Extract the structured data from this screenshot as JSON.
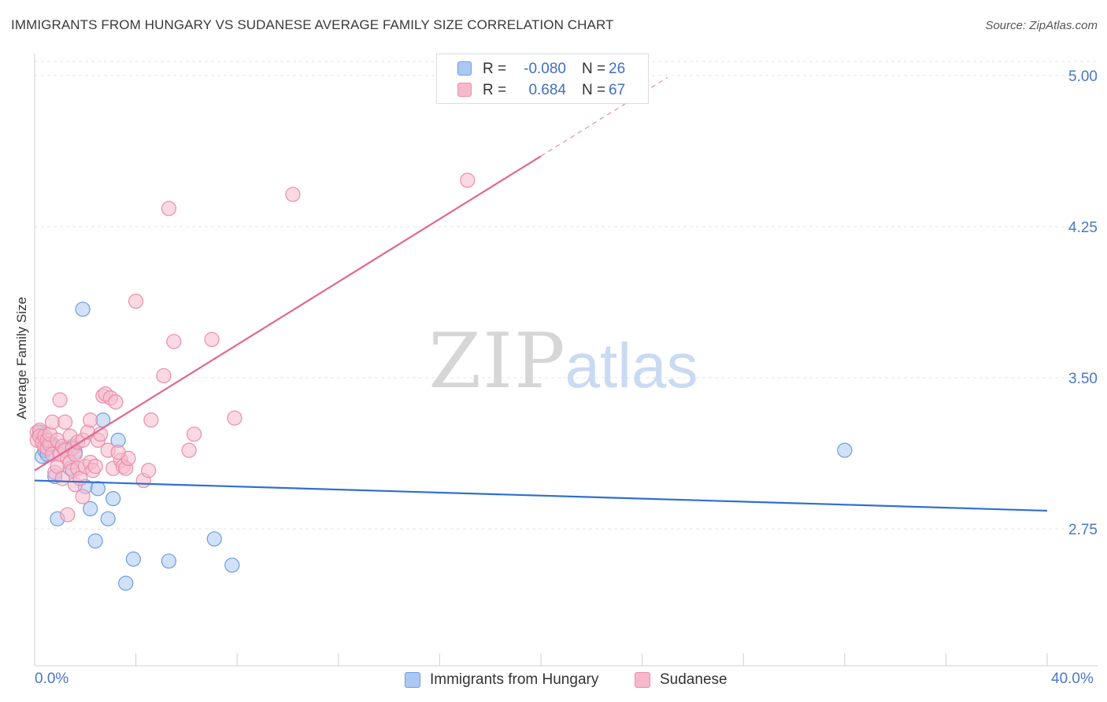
{
  "title": "IMMIGRANTS FROM HUNGARY VS SUDANESE AVERAGE FAMILY SIZE CORRELATION CHART",
  "source": "Source: ZipAtlas.com",
  "watermark": {
    "part1": "ZIP",
    "part2": "atlas"
  },
  "legend": {
    "rows": [
      {
        "r_label": "R =",
        "r_value": "-0.080",
        "n_label": "N =",
        "n_value": "26"
      },
      {
        "r_label": "R =",
        "r_value": "0.684",
        "n_label": "N =",
        "n_value": "67"
      }
    ]
  },
  "bottom_legend": {
    "hungary": "Immigrants from Hungary",
    "sudanese": "Sudanese"
  },
  "x_axis_labels": {
    "min": "0.0%",
    "max": "40.0%"
  },
  "colors": {
    "hungary_fill": "#aac8f2",
    "hungary_stroke": "#6f9de0",
    "hungary_line": "#2e6fd1",
    "sudanese_fill": "#f6b9cb",
    "sudanese_stroke": "#ea8dac",
    "sudanese_line": "#e2688f",
    "axis_text": "#4a78c6"
  },
  "chart_data": {
    "type": "scatter",
    "title": "IMMIGRANTS FROM HUNGARY VS SUDANESE AVERAGE FAMILY SIZE CORRELATION CHART",
    "xlabel": "",
    "ylabel": "Average Family Size",
    "xlim": [
      0,
      40
    ],
    "ylim": [
      2.0,
      5.07
    ],
    "y_ticks": [
      2.75,
      3.5,
      4.25,
      5.0
    ],
    "y_tick_labels": [
      "2.75",
      "3.50",
      "4.25",
      "5.00"
    ],
    "grid": true,
    "legend_position": "top-center",
    "series": [
      {
        "name": "Immigrants from Hungary",
        "R": -0.08,
        "N": 26,
        "trend": {
          "x": [
            0,
            40
          ],
          "y": [
            2.99,
            2.84
          ]
        },
        "points": [
          [
            0.3,
            3.11
          ],
          [
            0.4,
            3.14
          ],
          [
            0.5,
            3.12
          ],
          [
            0.7,
            3.17
          ],
          [
            0.8,
            3.01
          ],
          [
            0.9,
            2.8
          ],
          [
            1.2,
            3.15
          ],
          [
            1.4,
            3.05
          ],
          [
            1.5,
            3.16
          ],
          [
            1.6,
            3.13
          ],
          [
            1.9,
            3.84
          ],
          [
            2.0,
            2.96
          ],
          [
            2.2,
            2.85
          ],
          [
            2.4,
            2.69
          ],
          [
            2.5,
            2.95
          ],
          [
            2.7,
            3.29
          ],
          [
            2.9,
            2.8
          ],
          [
            3.1,
            2.9
          ],
          [
            3.3,
            3.19
          ],
          [
            3.6,
            2.48
          ],
          [
            3.9,
            2.6
          ],
          [
            5.3,
            2.59
          ],
          [
            7.1,
            2.7
          ],
          [
            7.8,
            2.57
          ],
          [
            32.0,
            3.14
          ],
          [
            0.2,
            3.23
          ]
        ]
      },
      {
        "name": "Sudanese",
        "R": 0.684,
        "N": 67,
        "trend": {
          "x": [
            0,
            20
          ],
          "y": [
            3.04,
            4.6
          ]
        },
        "trend_dashed": {
          "x": [
            20,
            25
          ],
          "y": [
            4.6,
            4.99
          ]
        },
        "points": [
          [
            0.1,
            3.23
          ],
          [
            0.1,
            3.19
          ],
          [
            0.2,
            3.24
          ],
          [
            0.2,
            3.21
          ],
          [
            0.3,
            3.18
          ],
          [
            0.4,
            3.16
          ],
          [
            0.4,
            3.21
          ],
          [
            0.5,
            3.15
          ],
          [
            0.5,
            3.19
          ],
          [
            0.6,
            3.17
          ],
          [
            0.6,
            3.22
          ],
          [
            0.7,
            3.12
          ],
          [
            0.7,
            3.28
          ],
          [
            0.8,
            3.03
          ],
          [
            0.9,
            3.06
          ],
          [
            0.9,
            3.19
          ],
          [
            1.0,
            3.39
          ],
          [
            1.0,
            3.12
          ],
          [
            1.1,
            3.0
          ],
          [
            1.1,
            3.16
          ],
          [
            1.2,
            3.28
          ],
          [
            1.2,
            3.14
          ],
          [
            1.3,
            3.1
          ],
          [
            1.3,
            2.82
          ],
          [
            1.4,
            3.08
          ],
          [
            1.4,
            3.21
          ],
          [
            1.5,
            3.15
          ],
          [
            1.5,
            3.04
          ],
          [
            1.6,
            3.12
          ],
          [
            1.6,
            2.97
          ],
          [
            1.7,
            3.05
          ],
          [
            1.7,
            3.18
          ],
          [
            1.8,
            3.0
          ],
          [
            1.9,
            2.91
          ],
          [
            1.9,
            3.19
          ],
          [
            2.0,
            3.06
          ],
          [
            2.1,
            3.23
          ],
          [
            2.2,
            3.08
          ],
          [
            2.2,
            3.29
          ],
          [
            2.3,
            3.04
          ],
          [
            2.5,
            3.19
          ],
          [
            2.6,
            3.22
          ],
          [
            2.7,
            3.41
          ],
          [
            2.8,
            3.42
          ],
          [
            2.9,
            3.14
          ],
          [
            3.0,
            3.4
          ],
          [
            3.1,
            3.05
          ],
          [
            3.2,
            3.38
          ],
          [
            3.4,
            3.09
          ],
          [
            3.5,
            3.06
          ],
          [
            3.6,
            3.05
          ],
          [
            3.7,
            3.1
          ],
          [
            4.0,
            3.88
          ],
          [
            4.3,
            2.99
          ],
          [
            4.5,
            3.04
          ],
          [
            4.6,
            3.29
          ],
          [
            5.1,
            3.51
          ],
          [
            5.3,
            4.34
          ],
          [
            5.5,
            3.68
          ],
          [
            6.3,
            3.22
          ],
          [
            6.1,
            3.14
          ],
          [
            7.0,
            3.69
          ],
          [
            7.9,
            3.3
          ],
          [
            10.2,
            4.41
          ],
          [
            17.1,
            4.48
          ],
          [
            2.4,
            3.06
          ],
          [
            3.3,
            3.13
          ]
        ]
      }
    ]
  }
}
